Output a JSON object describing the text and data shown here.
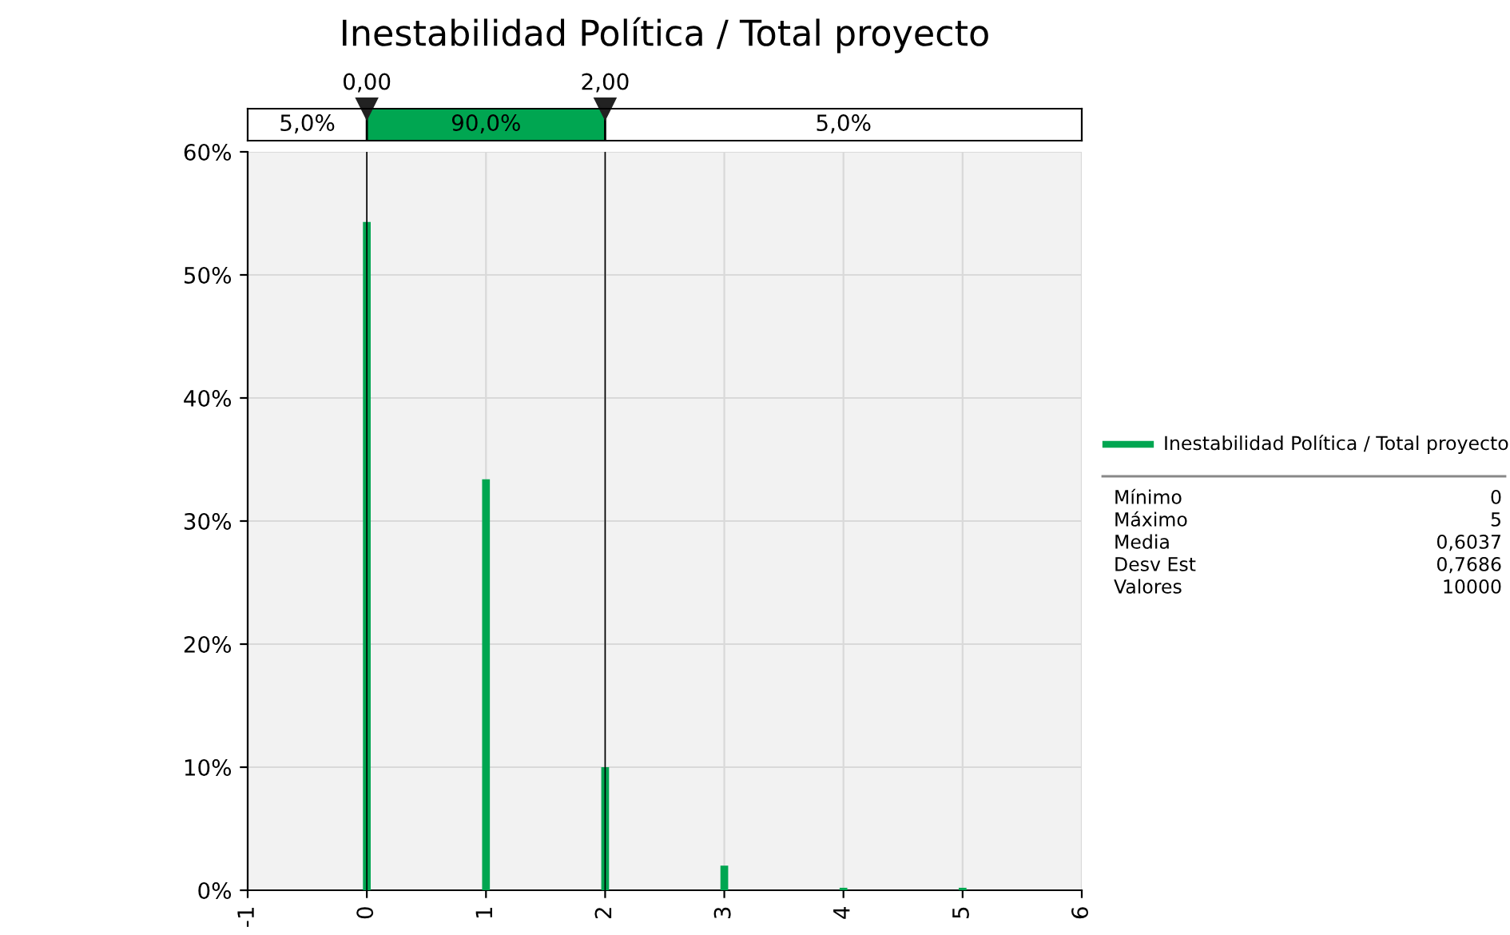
{
  "chart_data": {
    "type": "bar",
    "title": "Inestabilidad Política / Total proyecto",
    "x": [
      0,
      1,
      2,
      3,
      4,
      5
    ],
    "series": [
      {
        "name": "Inestabilidad Política / Total proyecto",
        "color": "#00a651",
        "values": [
          54.3,
          33.4,
          10.0,
          2.0,
          0.2,
          0.2
        ]
      }
    ],
    "xlim": [
      -1,
      6
    ],
    "xticks": [
      -1,
      0,
      1,
      2,
      3,
      4,
      5,
      6
    ],
    "ylim": [
      0,
      60
    ],
    "yticks": [
      {
        "value": 0,
        "label": "0%"
      },
      {
        "value": 10,
        "label": "10%"
      },
      {
        "value": 20,
        "label": "20%"
      },
      {
        "value": 30,
        "label": "30%"
      },
      {
        "value": 40,
        "label": "40%"
      },
      {
        "value": 50,
        "label": "50%"
      },
      {
        "value": 60,
        "label": "60%"
      }
    ],
    "ref_lines": [
      {
        "axis": "x",
        "value": 0,
        "label": "0,00",
        "color": "#000000"
      },
      {
        "axis": "x",
        "value": 2,
        "label": "2,00",
        "color": "#000000"
      }
    ],
    "annotations": [
      "5,0%",
      "90,0%",
      "5,0%",
      "Mínimo",
      "0",
      "Máximo",
      "5",
      "Media",
      "0,6037",
      "Desv Est",
      "0,7686",
      "Valores",
      "10000"
    ],
    "grid": true,
    "legend": "right"
  }
}
